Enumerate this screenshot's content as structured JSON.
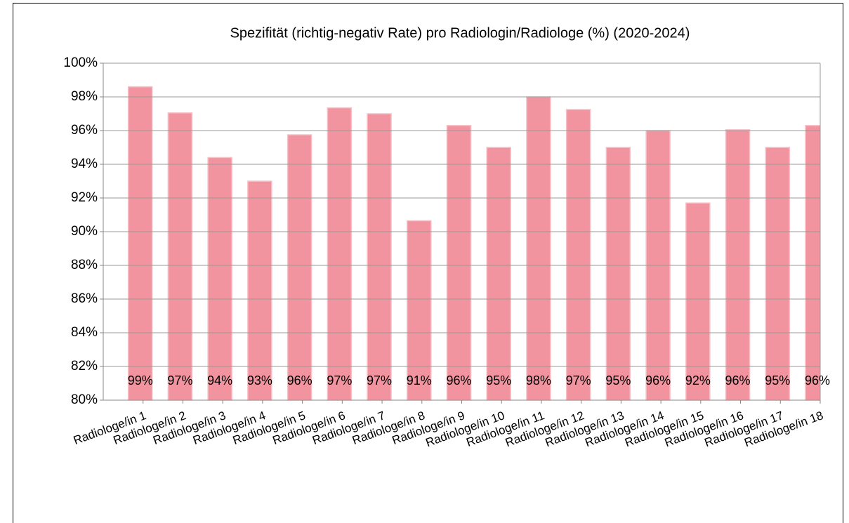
{
  "chart_data": {
    "type": "bar",
    "title": "Spezifität (richtig-negativ Rate) pro Radiologin/Radiologe (%) (2020-2024)",
    "categories": [
      "Radiologe/in 1",
      "Radiologe/in 2",
      "Radiologe/in 3",
      "Radiologe/in 4",
      "Radiologe/in 5",
      "Radiologe/in 6",
      "Radiologe/in 7",
      "Radiologe/in 8",
      "Radiologe/in 9",
      "Radiologe/in 10",
      "Radiologe/in 11",
      "Radiologe/in 12",
      "Radiologe/in 13",
      "Radiologe/in 14",
      "Radiologe/in 15",
      "Radiologe/in 16",
      "Radiologe/in 17",
      "Radiologe/in 18"
    ],
    "values": [
      98.6,
      97.05,
      94.4,
      93.0,
      95.75,
      97.35,
      97.0,
      90.65,
      96.3,
      95.0,
      98.0,
      97.25,
      95.0,
      96.0,
      91.7,
      96.05,
      95.0,
      96.3
    ],
    "value_labels": [
      "99%",
      "97%",
      "94%",
      "93%",
      "96%",
      "97%",
      "97%",
      "91%",
      "96%",
      "95%",
      "98%",
      "97%",
      "95%",
      "96%",
      "92%",
      "96%",
      "95%",
      "96%"
    ],
    "color": "#f1949f",
    "ylim": [
      80,
      100
    ],
    "yticks": [
      {
        "value": 80,
        "label": "80%"
      },
      {
        "value": 82,
        "label": "82%"
      },
      {
        "value": 84,
        "label": "84%"
      },
      {
        "value": 86,
        "label": "86%"
      },
      {
        "value": 88,
        "label": "88%"
      },
      {
        "value": 90,
        "label": "90%"
      },
      {
        "value": 92,
        "label": "92%"
      },
      {
        "value": 94,
        "label": "94%"
      },
      {
        "value": 96,
        "label": "96%"
      },
      {
        "value": 98,
        "label": "98%"
      },
      {
        "value": 100,
        "label": "100%"
      }
    ],
    "grid": true
  }
}
